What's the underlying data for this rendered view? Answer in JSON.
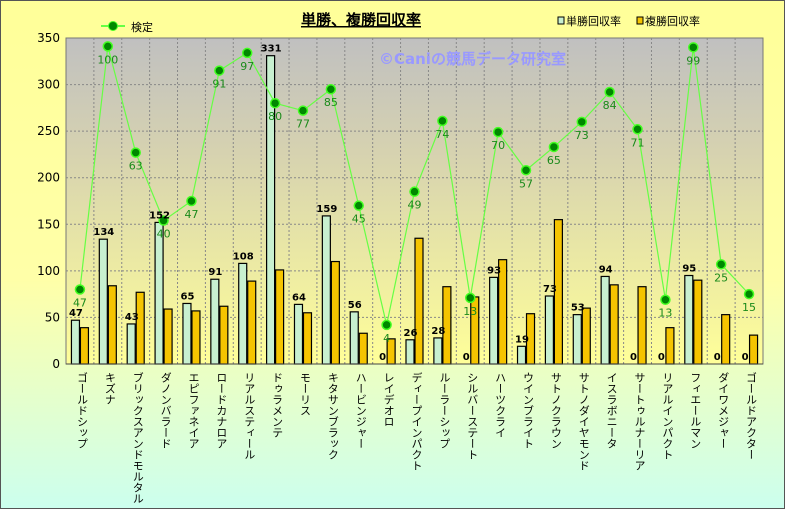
{
  "chart_data": {
    "type": "bar",
    "title": "単勝、複勝回収率",
    "watermark": "©Caniの競馬データ研究室",
    "ylim": [
      0,
      350
    ],
    "yticks": [
      0,
      50,
      100,
      150,
      200,
      250,
      300,
      350
    ],
    "grid": true,
    "legend_placement": "top",
    "categories": [
      "ゴールドシップ",
      "キズナ",
      "ブリックスアンドモルタル",
      "ダノンバラード",
      "エピファネイア",
      "ロードカナロア",
      "リアルスティール",
      "ドゥラメンテ",
      "モーリス",
      "キタサンブラック",
      "ハービンジャー",
      "レイデオロ",
      "ディープインパクト",
      "ルーラーシップ",
      "シルバーステート",
      "ハーツクライ",
      "ウインブライト",
      "サトノクラウン",
      "サトノダイヤモンド",
      "イスラボニータ",
      "サートゥルナーリア",
      "リアルインパクト",
      "フィエールマン",
      "ダイワメジャー",
      "ゴールドアクター"
    ],
    "series": [
      {
        "name": "単勝回収率",
        "type": "bar",
        "color": "#c8f0d0",
        "values": [
          47,
          134,
          43,
          152,
          65,
          91,
          108,
          331,
          64,
          159,
          56,
          0,
          26,
          28,
          0,
          93,
          19,
          73,
          53,
          94,
          0,
          0,
          95,
          0,
          0
        ]
      },
      {
        "name": "複勝回収率",
        "type": "bar",
        "color": "#f5c400",
        "values": [
          39,
          84,
          77,
          59,
          57,
          62,
          89,
          101,
          55,
          110,
          33,
          27,
          135,
          83,
          72,
          112,
          54,
          155,
          60,
          85,
          83,
          39,
          90,
          53,
          31
        ]
      },
      {
        "name": "検定",
        "type": "line",
        "color": "#66ff44",
        "values": [
          80,
          341,
          227,
          154,
          175,
          315,
          334,
          280,
          272,
          295,
          170,
          42,
          185,
          261,
          71,
          249,
          208,
          233,
          260,
          292,
          252,
          69,
          340,
          107,
          75
        ],
        "labels": [
          47,
          100,
          63,
          40,
          47,
          91,
          97,
          80,
          77,
          85,
          45,
          4,
          49,
          74,
          13,
          70,
          57,
          65,
          73,
          84,
          71,
          13,
          99,
          25,
          15
        ]
      }
    ]
  }
}
